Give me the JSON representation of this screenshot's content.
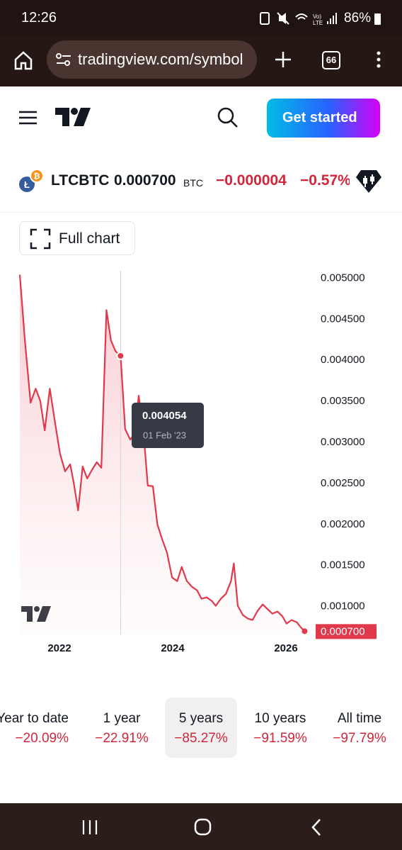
{
  "status_bar": {
    "time": "12:26",
    "battery": "86%"
  },
  "browser": {
    "url": "tradingview.com/symbol",
    "tab_count": "66"
  },
  "header": {
    "cta": "Get started"
  },
  "symbol": {
    "ticker": "LTCBTC",
    "price": "0.000700",
    "currency": "BTC",
    "change": "−0.000004",
    "change_percent": "−0.57%"
  },
  "full_chart_button": "Full chart",
  "chart_data": {
    "type": "area",
    "color": "#e0394b",
    "x": [
      2021.3,
      2021.39,
      2021.49,
      2021.58,
      2021.66,
      2021.74,
      2021.83,
      2021.93,
      2022.01,
      2022.1,
      2022.19,
      2022.25,
      2022.33,
      2022.41,
      2022.49,
      2022.58,
      2022.66,
      2022.74,
      2022.83,
      2022.91,
      2022.99,
      2023.08,
      2023.16,
      2023.25,
      2023.33,
      2023.4,
      2023.48,
      2023.56,
      2023.65,
      2023.73,
      2023.81,
      2023.9,
      2023.99,
      2024.08,
      2024.16,
      2024.25,
      2024.34,
      2024.43,
      2024.51,
      2024.6,
      2024.69,
      2024.76,
      2024.85,
      2024.94,
      2025.03,
      2025.08,
      2025.15,
      2025.24,
      2025.33,
      2025.41,
      2025.5,
      2025.59,
      2025.68,
      2025.76,
      2025.85,
      2025.94,
      2026.01,
      2026.1,
      2026.19,
      2026.26,
      2026.33
    ],
    "values": [
      0.005043,
      0.004241,
      0.003483,
      0.003655,
      0.003509,
      0.003147,
      0.003655,
      0.003207,
      0.002862,
      0.002647,
      0.002733,
      0.002517,
      0.002172,
      0.002707,
      0.00256,
      0.002672,
      0.002759,
      0.00269,
      0.004612,
      0.004241,
      0.004112,
      0.004054,
      0.003164,
      0.003034,
      0.003103,
      0.003569,
      0.003164,
      0.002474,
      0.002466,
      0.002,
      0.001828,
      0.001655,
      0.001353,
      0.00131,
      0.001483,
      0.00131,
      0.001241,
      0.001198,
      0.001095,
      0.001112,
      0.001069,
      0.001009,
      0.001095,
      0.001155,
      0.00131,
      0.001526,
      0.001009,
      0.000897,
      0.000853,
      0.000836,
      0.000948,
      0.001026,
      0.000966,
      0.000914,
      0.00094,
      0.000879,
      0.000793,
      0.000836,
      0.00081,
      0.00075,
      0.0007
    ],
    "xlim": [
      2021.3,
      2026.4
    ],
    "xticks": [
      2022,
      2024,
      2026
    ],
    "ylim": [
      0.00066,
      0.00509
    ],
    "yticks": [
      {
        "value": 0.001,
        "label": "0.001000"
      },
      {
        "value": 0.0015,
        "label": "0.001500"
      },
      {
        "value": 0.002,
        "label": "0.002000"
      },
      {
        "value": 0.0025,
        "label": "0.002500"
      },
      {
        "value": 0.003,
        "label": "0.003000"
      },
      {
        "value": 0.0035,
        "label": "0.003500"
      },
      {
        "value": 0.004,
        "label": "0.004000"
      },
      {
        "value": 0.0045,
        "label": "0.004500"
      },
      {
        "value": 0.005,
        "label": "0.005000"
      }
    ],
    "grid": false,
    "tooltip": {
      "x": 2023.08,
      "value": 0.004054,
      "label": "01 Feb '23"
    },
    "last_value": 0.0007,
    "last_label": "0.000700"
  },
  "ranges": [
    {
      "label": "Year to date",
      "change": "−20.09%"
    },
    {
      "label": "1 year",
      "change": "−22.91%"
    },
    {
      "label": "5 years",
      "change": "−85.27%"
    },
    {
      "label": "10 years",
      "change": "−91.59%"
    },
    {
      "label": "All time",
      "change": "−97.79%"
    }
  ]
}
